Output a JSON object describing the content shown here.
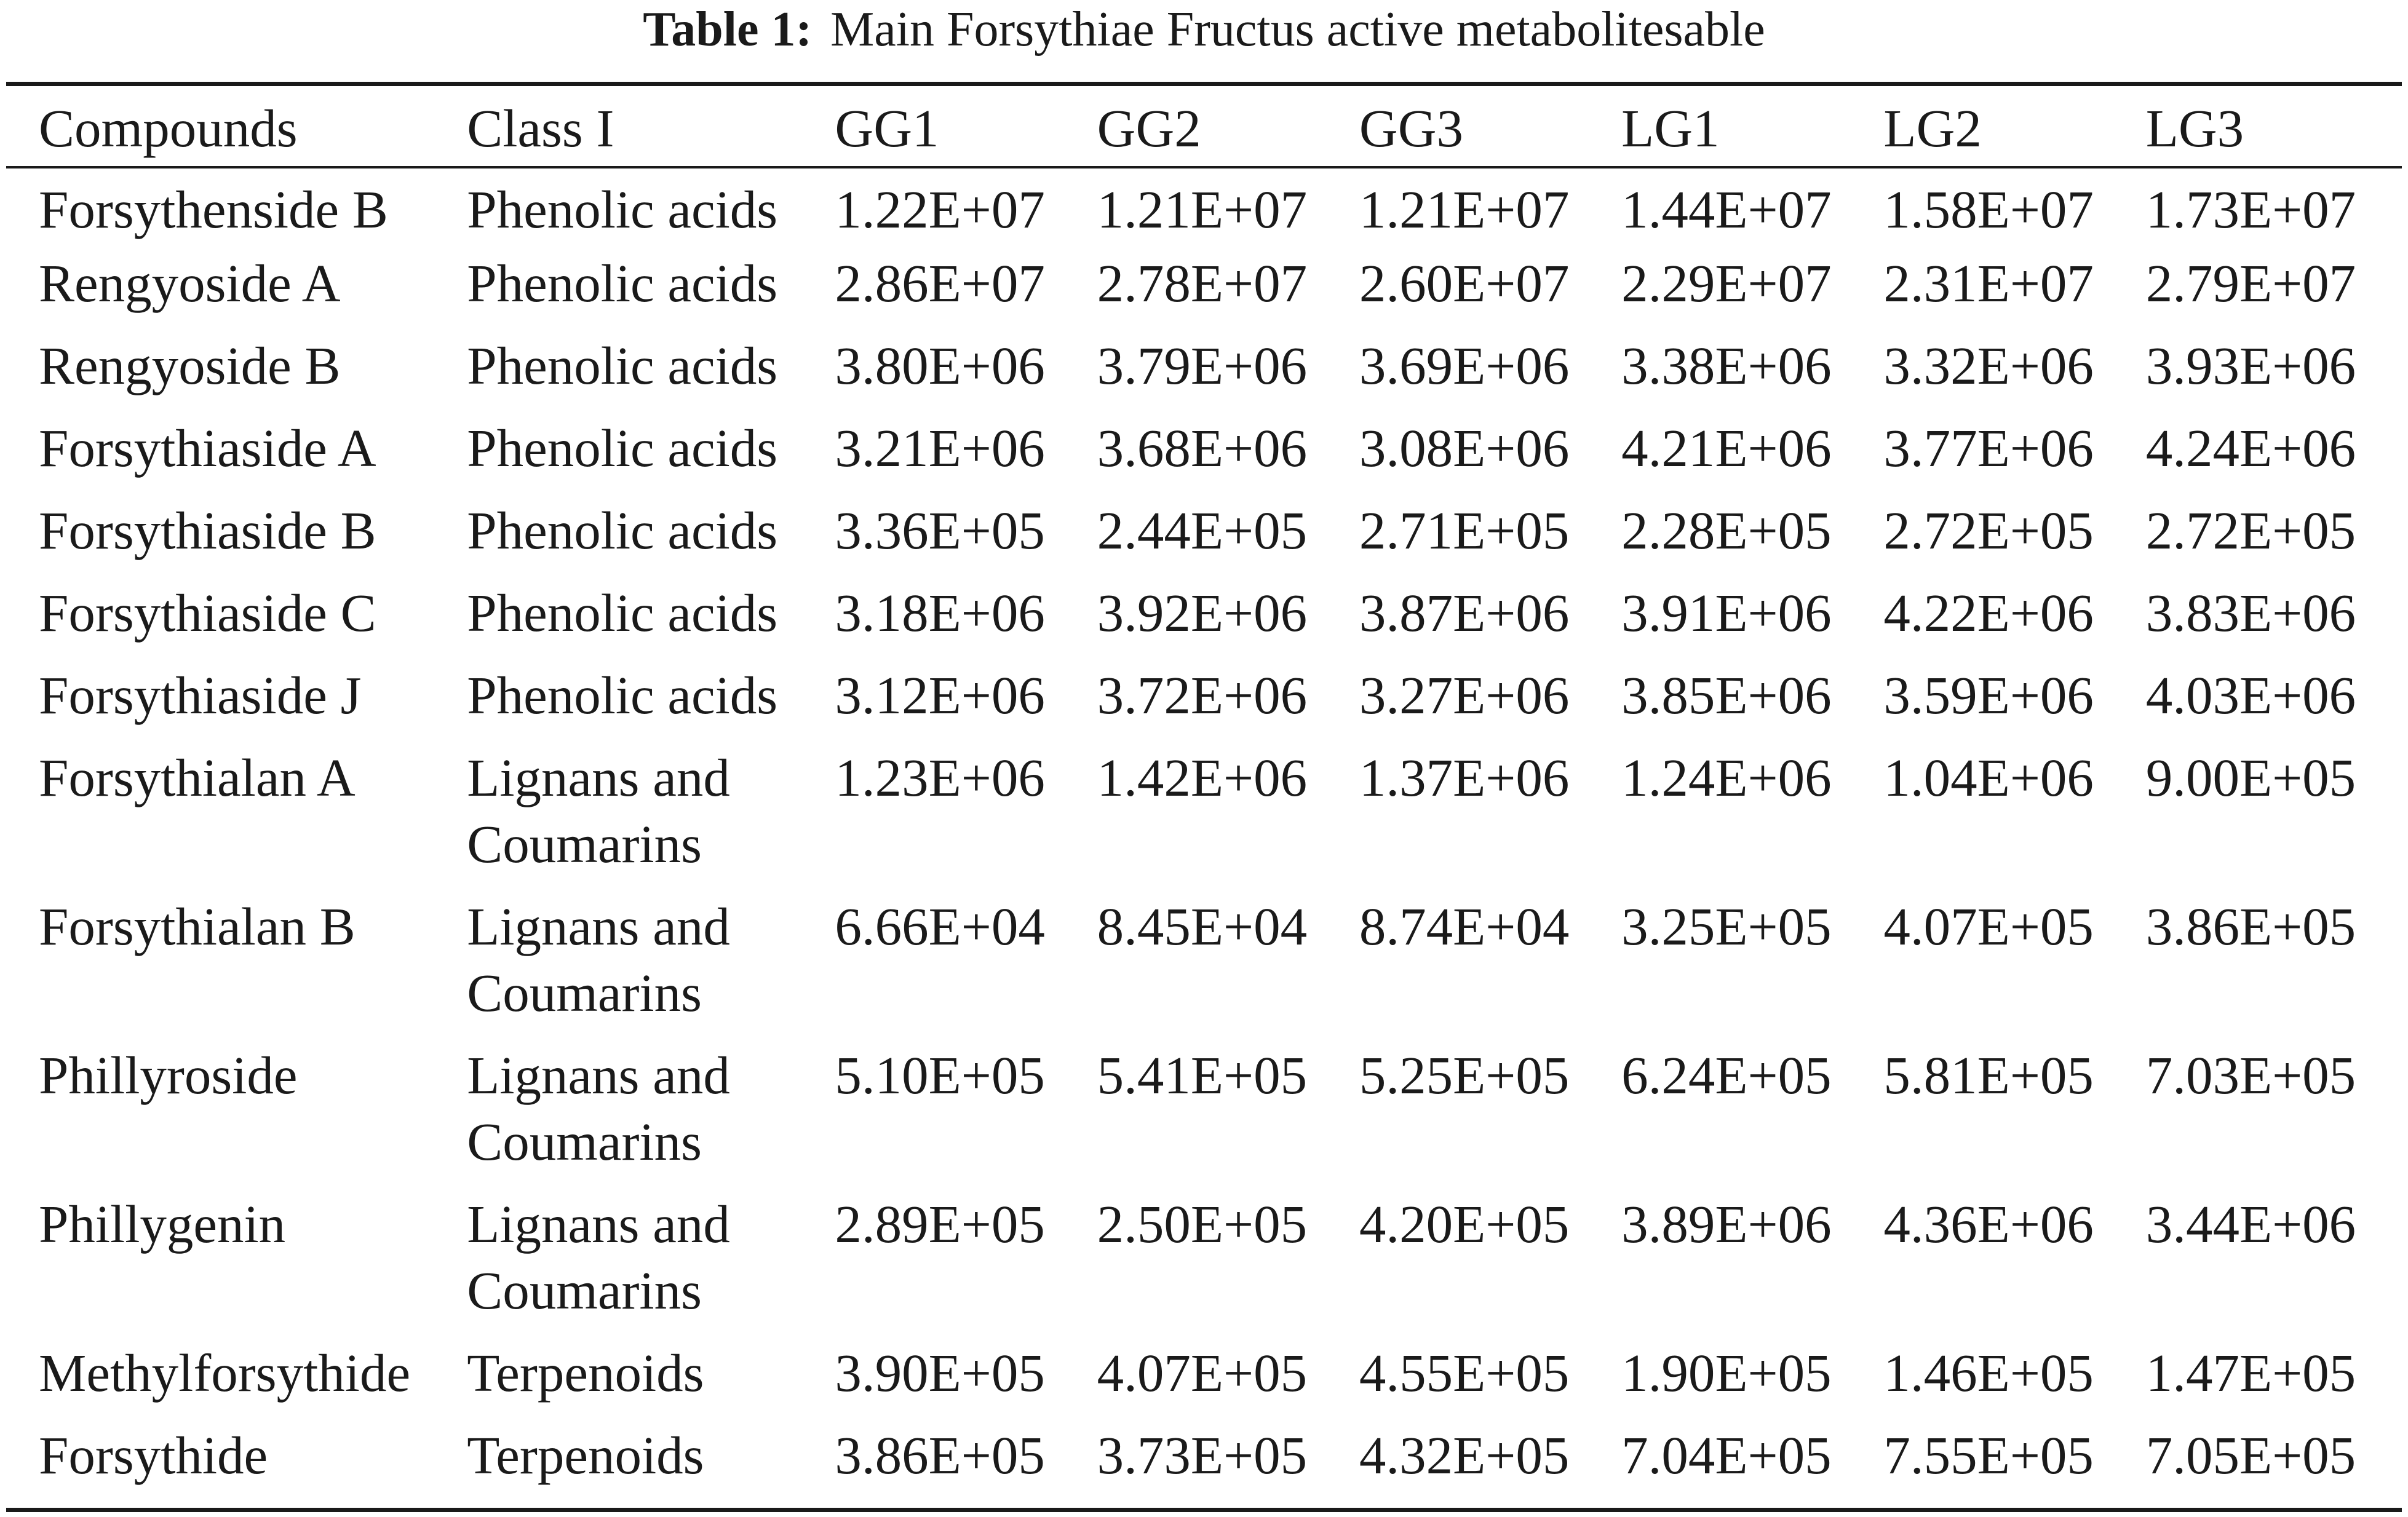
{
  "caption": {
    "label": "Table 1:",
    "text": "Main Forsythiae Fructus active metabolitesable"
  },
  "table": {
    "headers": [
      "Compounds",
      "Class I",
      "GG1",
      "GG2",
      "GG3",
      "LG1",
      "LG2",
      "LG3"
    ],
    "rows": [
      {
        "compound": "Forsythenside B",
        "class": "Phenolic acids",
        "values": [
          "1.22E+07",
          "1.21E+07",
          "1.21E+07",
          "1.44E+07",
          "1.58E+07",
          "1.73E+07"
        ]
      },
      {
        "compound": "Rengyoside A",
        "class": "Phenolic acids",
        "values": [
          "2.86E+07",
          "2.78E+07",
          "2.60E+07",
          "2.29E+07",
          "2.31E+07",
          "2.79E+07"
        ]
      },
      {
        "compound": "Rengyoside B",
        "class": "Phenolic acids",
        "values": [
          "3.80E+06",
          "3.79E+06",
          "3.69E+06",
          "3.38E+06",
          "3.32E+06",
          "3.93E+06"
        ]
      },
      {
        "compound": "Forsythiaside A",
        "class": "Phenolic acids",
        "values": [
          "3.21E+06",
          "3.68E+06",
          "3.08E+06",
          "4.21E+06",
          "3.77E+06",
          "4.24E+06"
        ]
      },
      {
        "compound": "Forsythiaside B",
        "class": "Phenolic acids",
        "values": [
          "3.36E+05",
          "2.44E+05",
          "2.71E+05",
          "2.28E+05",
          "2.72E+05",
          "2.72E+05"
        ]
      },
      {
        "compound": "Forsythiaside C",
        "class": "Phenolic acids",
        "values": [
          "3.18E+06",
          "3.92E+06",
          "3.87E+06",
          "3.91E+06",
          "4.22E+06",
          "3.83E+06"
        ]
      },
      {
        "compound": "Forsythiaside J",
        "class": "Phenolic acids",
        "values": [
          "3.12E+06",
          "3.72E+06",
          "3.27E+06",
          "3.85E+06",
          "3.59E+06",
          "4.03E+06"
        ]
      },
      {
        "compound": "Forsythialan A",
        "class": "Lignans and Coumarins",
        "values": [
          "1.23E+06",
          "1.42E+06",
          "1.37E+06",
          "1.24E+06",
          "1.04E+06",
          "9.00E+05"
        ]
      },
      {
        "compound": "Forsythialan B",
        "class": "Lignans and Coumarins",
        "values": [
          "6.66E+04",
          "8.45E+04",
          "8.74E+04",
          "3.25E+05",
          "4.07E+05",
          "3.86E+05"
        ]
      },
      {
        "compound": "Phillyroside",
        "class": "Lignans and Coumarins",
        "values": [
          "5.10E+05",
          "5.41E+05",
          "5.25E+05",
          "6.24E+05",
          "5.81E+05",
          "7.03E+05"
        ]
      },
      {
        "compound": "Phillygenin",
        "class": "Lignans and Coumarins",
        "values": [
          "2.89E+05",
          "2.50E+05",
          "4.20E+05",
          "3.89E+06",
          "4.36E+06",
          "3.44E+06"
        ]
      },
      {
        "compound": "Methylforsythide",
        "class": "Terpenoids",
        "values": [
          "3.90E+05",
          "4.07E+05",
          "4.55E+05",
          "1.90E+05",
          "1.46E+05",
          "1.47E+05"
        ]
      },
      {
        "compound": "Forsythide",
        "class": "Terpenoids",
        "values": [
          "3.86E+05",
          "3.73E+05",
          "4.32E+05",
          "7.04E+05",
          "7.55E+05",
          "7.05E+05"
        ]
      }
    ]
  }
}
